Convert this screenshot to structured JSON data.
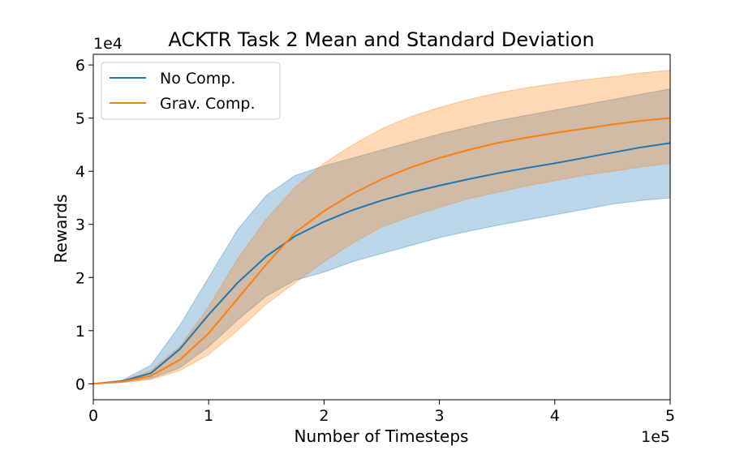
{
  "chart_data": {
    "type": "line",
    "title": "ACKTR Task 2 Mean and Standard Deviation",
    "xlabel": "Number of Timesteps",
    "ylabel": "Rewards",
    "x_scale_label": "1e5",
    "y_scale_label": "1e4",
    "xlim": [
      0,
      5
    ],
    "ylim": [
      -0.3,
      6.2
    ],
    "x_ticks": [
      "0",
      "1",
      "2",
      "3",
      "4",
      "5"
    ],
    "y_ticks": [
      "0",
      "1",
      "2",
      "3",
      "4",
      "5",
      "6"
    ],
    "legend_position": "top-left",
    "grid": false,
    "x": [
      0,
      0.25,
      0.5,
      0.75,
      1.0,
      1.25,
      1.5,
      1.75,
      2.0,
      2.25,
      2.5,
      2.75,
      3.0,
      3.25,
      3.5,
      3.75,
      4.0,
      4.25,
      4.5,
      4.75,
      5.0
    ],
    "series": [
      {
        "name": "No Comp.",
        "color": "#1f77b4",
        "fill_color": "#1f77b4",
        "mean": [
          0.0,
          0.05,
          0.2,
          0.65,
          1.3,
          1.9,
          2.4,
          2.78,
          3.05,
          3.27,
          3.45,
          3.6,
          3.73,
          3.85,
          3.96,
          4.06,
          4.15,
          4.25,
          4.35,
          4.45,
          4.53
        ],
        "upper": [
          0.0,
          0.07,
          0.35,
          1.1,
          2.0,
          2.9,
          3.55,
          3.92,
          4.1,
          4.25,
          4.4,
          4.55,
          4.7,
          4.83,
          4.95,
          5.05,
          5.15,
          5.25,
          5.35,
          5.45,
          5.55
        ],
        "lower": [
          0.0,
          0.03,
          0.1,
          0.3,
          0.7,
          1.2,
          1.65,
          1.95,
          2.1,
          2.3,
          2.45,
          2.6,
          2.75,
          2.87,
          2.98,
          3.08,
          3.18,
          3.28,
          3.38,
          3.45,
          3.5
        ]
      },
      {
        "name": "Grav. Comp.",
        "color": "#ff7f0e",
        "fill_color": "#ff7f0e",
        "mean": [
          0.0,
          0.04,
          0.15,
          0.45,
          0.95,
          1.6,
          2.25,
          2.85,
          3.25,
          3.58,
          3.85,
          4.07,
          4.25,
          4.4,
          4.53,
          4.63,
          4.72,
          4.8,
          4.88,
          4.95,
          5.0
        ],
        "upper": [
          0.0,
          0.05,
          0.25,
          0.7,
          1.45,
          2.35,
          3.1,
          3.7,
          4.15,
          4.5,
          4.8,
          5.03,
          5.2,
          5.35,
          5.47,
          5.57,
          5.65,
          5.72,
          5.78,
          5.85,
          5.9
        ],
        "lower": [
          0.0,
          0.02,
          0.08,
          0.25,
          0.55,
          1.0,
          1.5,
          1.9,
          2.3,
          2.65,
          2.95,
          3.15,
          3.32,
          3.48,
          3.6,
          3.72,
          3.82,
          3.92,
          4.0,
          4.08,
          4.15
        ]
      }
    ]
  }
}
